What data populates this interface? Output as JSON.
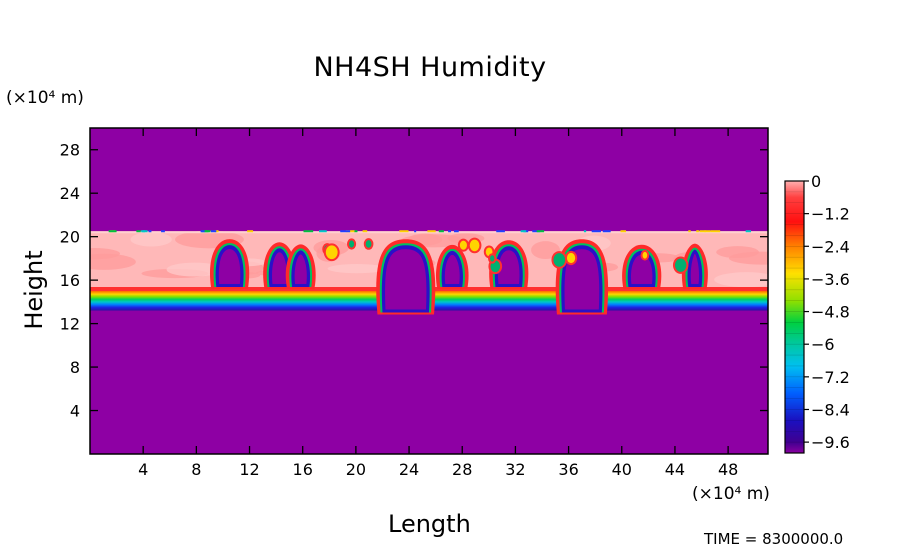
{
  "chart_data": {
    "type": "heatmap",
    "title": "NH4SH Humidity",
    "xlabel": "Length",
    "ylabel": "Height",
    "x_unit": "(×10⁴ m)",
    "y_unit": "(×10⁴ m)",
    "xlim": [
      0,
      51
    ],
    "ylim": [
      0,
      30
    ],
    "x_ticks": [
      4,
      8,
      12,
      16,
      20,
      24,
      28,
      32,
      36,
      40,
      44,
      48
    ],
    "y_ticks": [
      4,
      8,
      12,
      16,
      20,
      24,
      28
    ],
    "colorbar": {
      "range": [
        -10,
        0
      ],
      "tick_values": [
        0,
        -1.2,
        -2.4,
        -3.6,
        -4.8,
        -6,
        -7.2,
        -8.4,
        -9.6
      ],
      "tick_labels": [
        "0",
        "−1.2",
        "−2.4",
        "−3.6",
        "−4.8",
        "−6",
        "−7.2",
        "−8.4",
        "−9.6"
      ]
    },
    "background_value": -10,
    "layer": {
      "top_height": 20.5,
      "moist_base_height": 15,
      "gradient_bottom_height": 13.2,
      "saturated_value": 0
    },
    "dry_pockets_x": [
      [
        9.5,
        11.5
      ],
      [
        13.5,
        15
      ],
      [
        15.2,
        16.5
      ],
      [
        22,
        25.5
      ],
      [
        26.5,
        28
      ],
      [
        30.5,
        32.5
      ],
      [
        35.5,
        38.5
      ],
      [
        40.5,
        42.5
      ],
      [
        45,
        46
      ]
    ],
    "annotation": "TIME = 8300000.0"
  }
}
